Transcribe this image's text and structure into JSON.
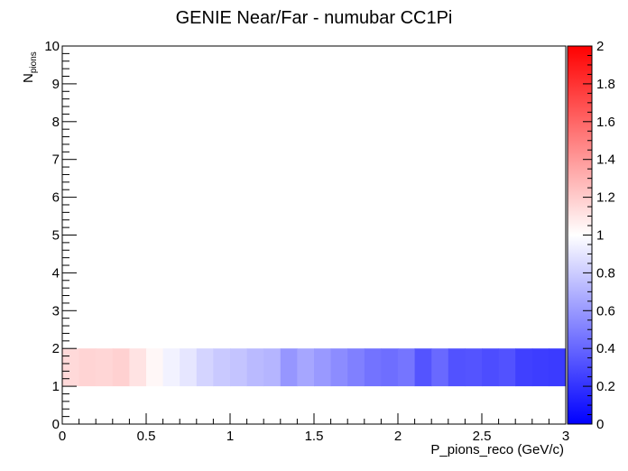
{
  "chart_data": {
    "type": "heatmap",
    "title": "GENIE Near/Far - numubar CC1Pi",
    "xlabel": "P_pions_reco (GeV/c)",
    "ylabel_main": "N",
    "ylabel_sub": "pions",
    "xlim": [
      0,
      3
    ],
    "ylim": [
      0,
      10
    ],
    "x_ticks": [
      "0",
      "0.5",
      "1",
      "1.5",
      "2",
      "2.5",
      "3"
    ],
    "y_ticks": [
      "0",
      "1",
      "2",
      "3",
      "4",
      "5",
      "6",
      "7",
      "8",
      "9",
      "10"
    ],
    "z_range": [
      0,
      2
    ],
    "z_ticks": [
      "0",
      "0.2",
      "0.4",
      "0.6",
      "0.8",
      "1",
      "1.2",
      "1.4",
      "1.6",
      "1.8",
      "2"
    ],
    "colormap": {
      "low": "#0000ff",
      "mid": "#ffffff",
      "high": "#ff0000"
    },
    "row": {
      "y_low": 1,
      "y_high": 2
    },
    "x_bin_width": 0.1,
    "cells": [
      {
        "x_low": 0.0,
        "value": 1.15
      },
      {
        "x_low": 0.1,
        "value": 1.17
      },
      {
        "x_low": 0.2,
        "value": 1.16
      },
      {
        "x_low": 0.3,
        "value": 1.18
      },
      {
        "x_low": 0.4,
        "value": 1.11
      },
      {
        "x_low": 0.5,
        "value": 1.03
      },
      {
        "x_low": 0.6,
        "value": 0.95
      },
      {
        "x_low": 0.7,
        "value": 0.9
      },
      {
        "x_low": 0.8,
        "value": 0.83
      },
      {
        "x_low": 0.9,
        "value": 0.79
      },
      {
        "x_low": 1.0,
        "value": 0.77
      },
      {
        "x_low": 1.1,
        "value": 0.73
      },
      {
        "x_low": 1.2,
        "value": 0.71
      },
      {
        "x_low": 1.3,
        "value": 0.59
      },
      {
        "x_low": 1.4,
        "value": 0.65
      },
      {
        "x_low": 1.5,
        "value": 0.6
      },
      {
        "x_low": 1.6,
        "value": 0.55
      },
      {
        "x_low": 1.7,
        "value": 0.5
      },
      {
        "x_low": 1.8,
        "value": 0.45
      },
      {
        "x_low": 1.9,
        "value": 0.43
      },
      {
        "x_low": 2.0,
        "value": 0.46
      },
      {
        "x_low": 2.1,
        "value": 0.33
      },
      {
        "x_low": 2.2,
        "value": 0.41
      },
      {
        "x_low": 2.3,
        "value": 0.32
      },
      {
        "x_low": 2.4,
        "value": 0.33
      },
      {
        "x_low": 2.5,
        "value": 0.3
      },
      {
        "x_low": 2.6,
        "value": 0.32
      },
      {
        "x_low": 2.7,
        "value": 0.25
      },
      {
        "x_low": 2.8,
        "value": 0.24
      },
      {
        "x_low": 2.9,
        "value": 0.23
      }
    ]
  }
}
